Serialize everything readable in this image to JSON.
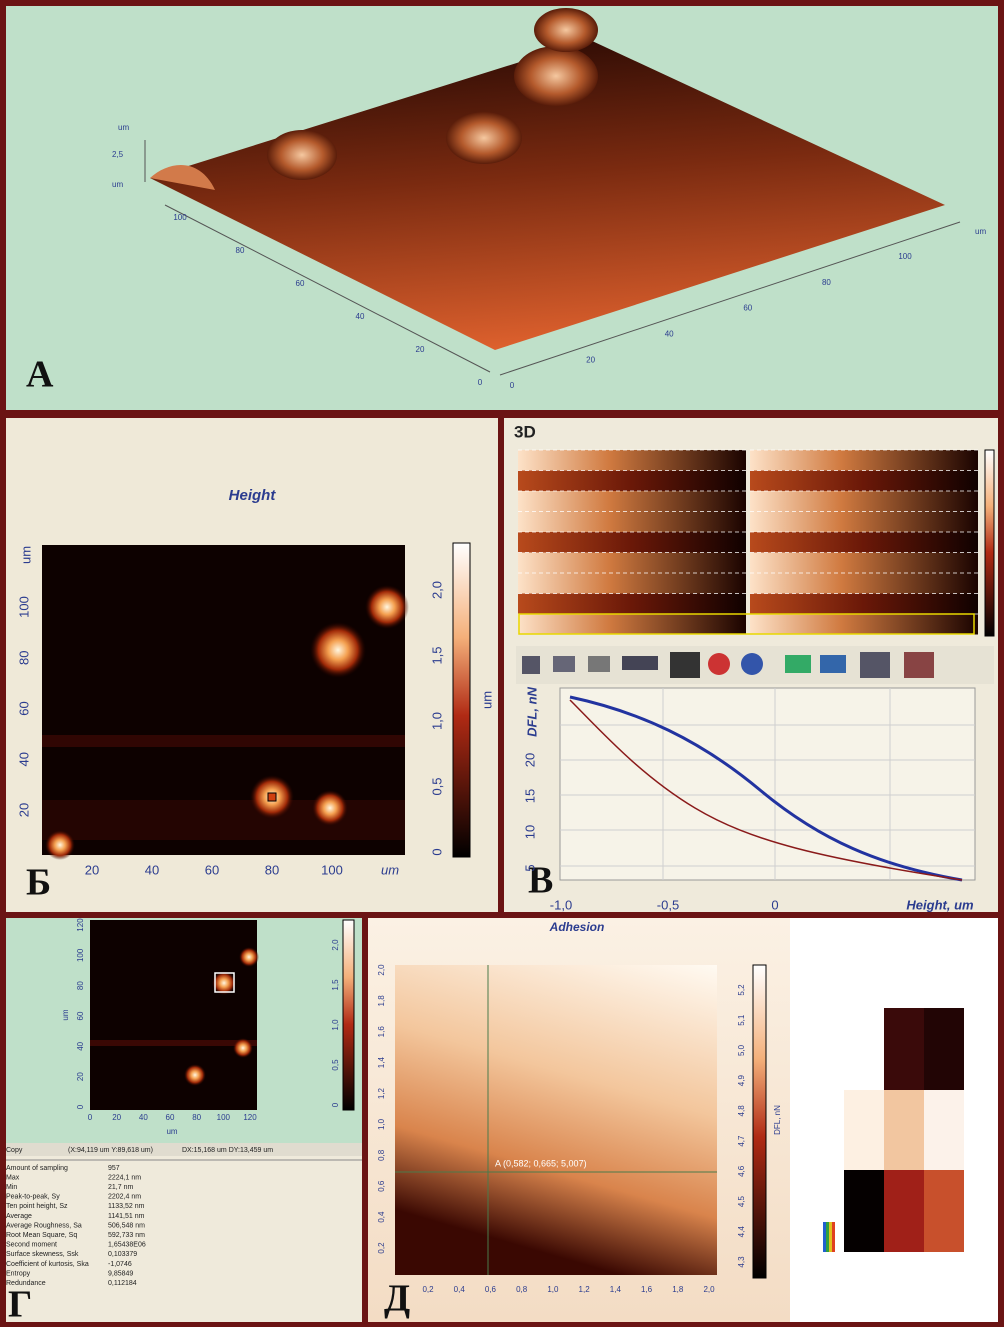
{
  "panel_a": {
    "label": "А",
    "z_unit_top": "um",
    "z_tick": "2,5",
    "z_unit_bottom": "um",
    "left_ticks": [
      100,
      80,
      60,
      40,
      20,
      0
    ],
    "right_ticks": [
      0,
      20,
      40,
      60,
      80,
      100
    ],
    "right_unit": "um"
  },
  "panel_b": {
    "label": "Б",
    "title": "Height",
    "y_unit": "um",
    "y_ticks": [
      100,
      80,
      60,
      40,
      20
    ],
    "x_ticks": [
      20,
      40,
      60,
      80,
      100
    ],
    "x_unit": "um",
    "colorbar_ticks": [
      "2,0",
      "1,5",
      "1,0",
      "0,5",
      "0"
    ],
    "colorbar_unit": "um"
  },
  "panel_v": {
    "label": "В",
    "view": "3D",
    "y_label": "DFL, nN",
    "y_ticks": [
      20,
      15,
      10,
      5
    ],
    "x_ticks": [
      "-1,0",
      "-0,5",
      "0"
    ],
    "x_label": "Height, um"
  },
  "panel_g": {
    "label": "Г",
    "y_unit": "um",
    "y_ticks": [
      120,
      100,
      80,
      60,
      40,
      20,
      0
    ],
    "x_ticks": [
      0,
      20,
      40,
      60,
      80,
      100,
      120
    ],
    "x_unit": "um",
    "colorbar_ticks": [
      "2,0",
      "1,5",
      "1,0",
      "0,5",
      "0"
    ],
    "status": [
      "Copy",
      "(X:94,119 um Y:89,618 um)",
      "DX:15,168 um DY:13,459 um"
    ],
    "stats": [
      [
        "Amount of sampling",
        "957"
      ],
      [
        "Max",
        "2224,1 nm"
      ],
      [
        "Min",
        "21,7 nm"
      ],
      [
        "Peak-to-peak, Sy",
        "2202,4 nm"
      ],
      [
        "Ten point height, Sz",
        "1133,52 nm"
      ],
      [
        "Average",
        "1141,51 nm"
      ],
      [
        "Average Roughness, Sa",
        "506,548 nm"
      ],
      [
        "Root Mean Square, Sq",
        "592,733 nm"
      ],
      [
        "Second moment",
        "1,65438E06"
      ],
      [
        "Surface skewness, Ssk",
        "0,103379"
      ],
      [
        "Coefficient of kurtosis, Ska",
        "-1,0746"
      ],
      [
        "Entropy",
        "9,85849"
      ],
      [
        "Redundance",
        "0,112184"
      ]
    ]
  },
  "panel_d": {
    "label": "Д",
    "title": "Adhesion",
    "y_ticks": [
      "2,0",
      "1,8",
      "1,6",
      "1,4",
      "1,2",
      "1,0",
      "0,8",
      "0,6",
      "0,4",
      "0,2"
    ],
    "x_ticks": [
      "0,2",
      "0,4",
      "0,6",
      "0,8",
      "1,0",
      "1,2",
      "1,4",
      "1,6",
      "1,8",
      "2,0"
    ],
    "annotation": "A (0,582; 0,665; 5,007)",
    "colorbar_ticks": [
      "5,2",
      "5,1",
      "5,0",
      "4,9",
      "4,8",
      "4,7",
      "4,6",
      "4,5",
      "4,4",
      "4,3"
    ],
    "colorbar_unit": "DFL, nN"
  }
}
